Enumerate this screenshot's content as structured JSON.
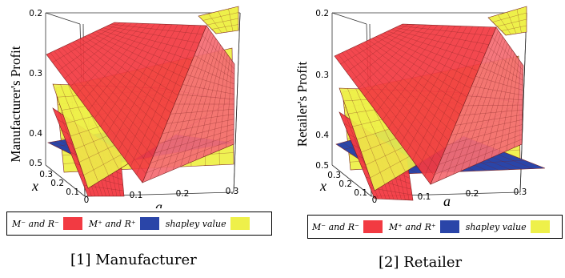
{
  "colors": {
    "red": "#f23a42",
    "blue": "#2a45a8",
    "yellow": "#eef04a",
    "grid": "#7a2020",
    "frame": "#333333"
  },
  "legend": {
    "items": [
      {
        "label": "M⁻ and R⁻",
        "color": "#f23a42"
      },
      {
        "label": "M⁺ and R⁺",
        "color": "#2a45a8"
      },
      {
        "label": "shapley value",
        "color": "#eef04a"
      }
    ]
  },
  "chart_data": [
    {
      "type": "surface3d",
      "title": "",
      "zlabel": "Manufacturer's Profit",
      "xlabel": "a",
      "ylabel": "x",
      "a_ticks": [
        "0",
        "0.1",
        "0.2",
        "0.3"
      ],
      "x_ticks": [
        "0.1",
        "0.2",
        "0.3"
      ],
      "z_ticks": [
        "0.2",
        "0.3",
        "0.4",
        "0.5"
      ],
      "a_range": [
        0,
        0.3
      ],
      "x_range": [
        0.1,
        0.3
      ],
      "z_range": [
        0.2,
        0.5
      ],
      "caption": "[1] Manufacturer"
    },
    {
      "type": "surface3d",
      "title": "",
      "zlabel": "Retailer's Profit",
      "xlabel": "a",
      "ylabel": "x",
      "a_ticks": [
        "0",
        "0.1",
        "0.2",
        "0.3"
      ],
      "x_ticks": [
        "0.1",
        "0.2",
        "0.3"
      ],
      "z_ticks": [
        "0.2",
        "0.3",
        "0.4",
        "0.5"
      ],
      "a_range": [
        0,
        0.3
      ],
      "x_range": [
        0.1,
        0.3
      ],
      "z_range": [
        0.2,
        0.5
      ],
      "caption": "[2] Retailer"
    }
  ]
}
